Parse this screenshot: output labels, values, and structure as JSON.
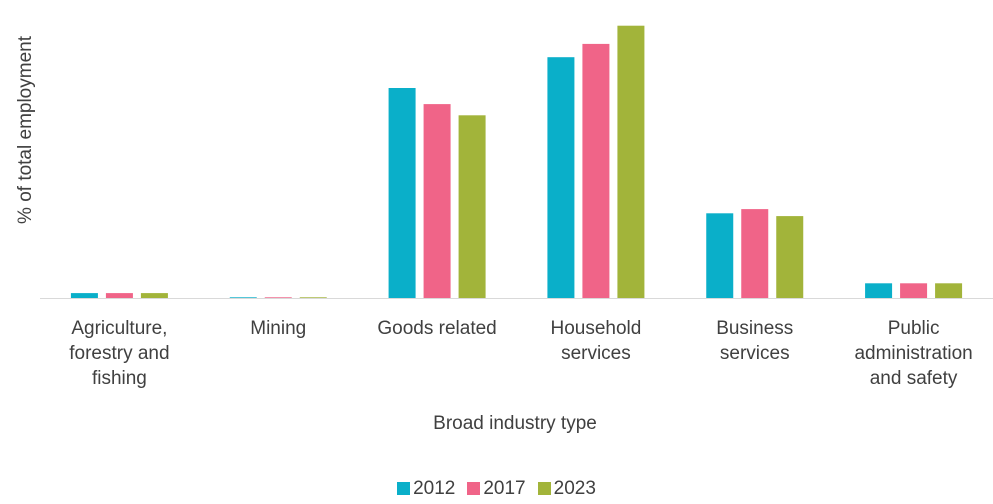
{
  "chart_data": {
    "type": "bar",
    "y_label": "% of total employment",
    "x_label": "Broad industry type",
    "categories": [
      "Agriculture, forestry and fishing",
      "Mining",
      "Goods related",
      "Household services",
      "Business services",
      "Public administration and safety"
    ],
    "series": [
      {
        "name": "2012",
        "color": "#0aafc9",
        "values": [
          0.7,
          0.1,
          30.0,
          34.4,
          12.1,
          2.1
        ]
      },
      {
        "name": "2017",
        "color": "#f06488",
        "values": [
          0.7,
          0.1,
          27.7,
          36.3,
          12.7,
          2.1
        ]
      },
      {
        "name": "2023",
        "color": "#a2b43a",
        "values": [
          0.7,
          0.1,
          26.1,
          38.9,
          11.7,
          2.1
        ]
      }
    ],
    "ylim": [
      0,
      40
    ],
    "legend": "bottom"
  }
}
